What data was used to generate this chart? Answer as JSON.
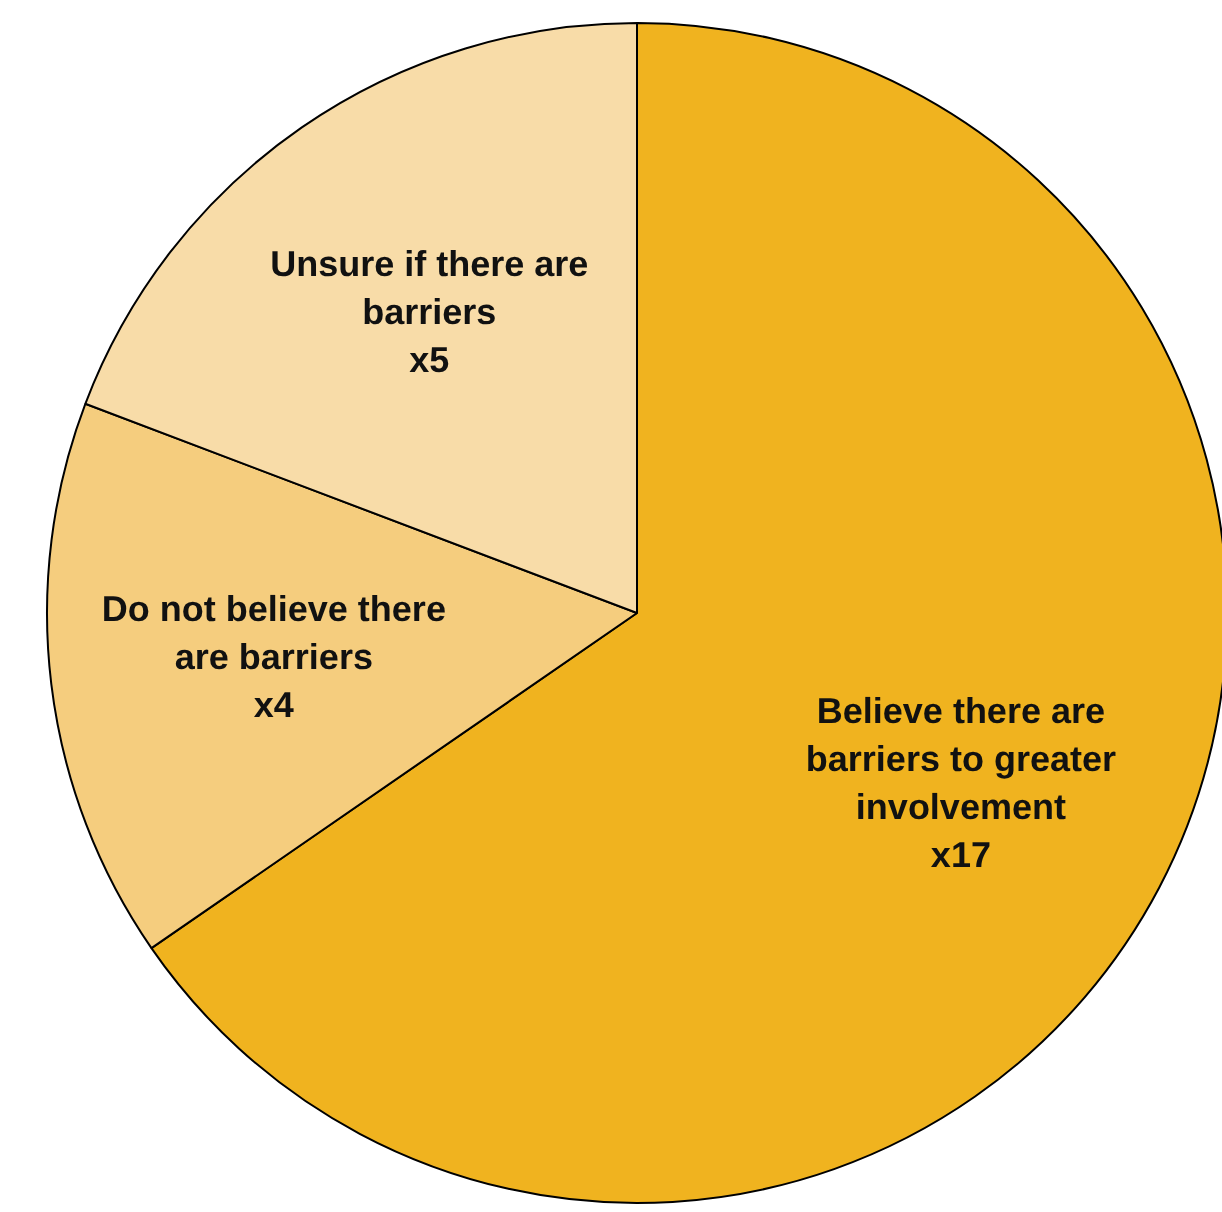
{
  "chart_data": {
    "type": "pie",
    "categories": [
      "Believe there are barriers to greater involvement",
      "Do not believe there are barriers",
      "Unsure if there are barriers"
    ],
    "values": [
      17,
      4,
      5
    ],
    "value_labels": [
      "x17",
      "x4",
      "x5"
    ],
    "colors": [
      "#f0b31f",
      "#f5cd7e",
      "#f8dca8"
    ]
  }
}
